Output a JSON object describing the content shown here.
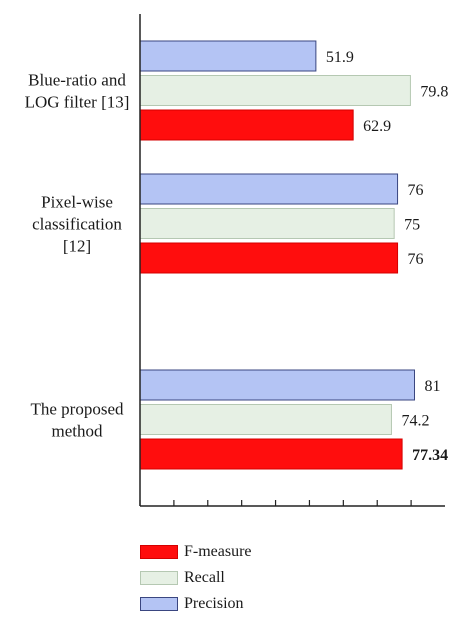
{
  "chart_data": {
    "type": "bar",
    "orientation": "horizontal",
    "categories": [
      [
        "Blue-ratio and",
        "LOG filter [13]"
      ],
      [
        "Pixel-wise",
        "classification",
        "[12]"
      ],
      [
        "The proposed",
        "method"
      ]
    ],
    "series": [
      {
        "name": "Precision",
        "color": "#b4c4f4",
        "values": [
          51.9,
          76,
          81
        ],
        "labels": [
          "51.9",
          "76",
          "81"
        ]
      },
      {
        "name": "Recall",
        "color": "#e6f0e4",
        "values": [
          79.8,
          75,
          74.2
        ],
        "labels": [
          "79.8",
          "75",
          "74.2"
        ]
      },
      {
        "name": "F-measure",
        "color": "#ff0d0d",
        "values": [
          62.9,
          76,
          77.34
        ],
        "labels": [
          "62.9",
          "76",
          "77.34"
        ]
      }
    ],
    "highlight": {
      "series": "F-measure",
      "category_index": 2,
      "style": "bold"
    },
    "xlim": [
      0,
      90
    ],
    "x_ticks": [
      0,
      10,
      20,
      30,
      40,
      50,
      60,
      70,
      80
    ],
    "grid": false,
    "legend": {
      "placement": "bottom",
      "order": [
        "F-measure",
        "Recall",
        "Precision"
      ]
    }
  }
}
